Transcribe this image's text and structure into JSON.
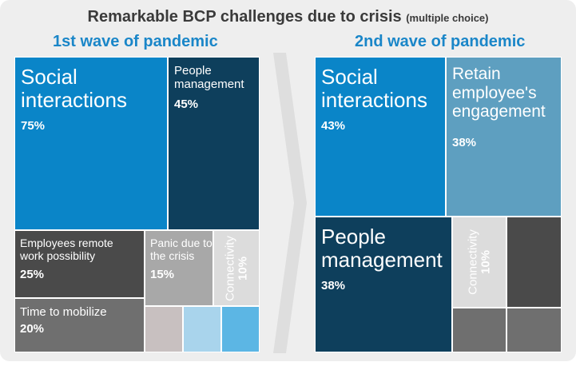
{
  "title": "Remarkable BCP challenges due to crisis",
  "subtitle": "(multiple choice)",
  "colors": {
    "dark_blue": "#0e3f5c",
    "mid_blue": "#0a85c8",
    "steel_blue": "#5e9fc0",
    "dark_gray": "#4a4a4a",
    "gray": "#6f6f6f",
    "light_gray": "#a8a8a8",
    "pale_gray": "#dcdcdc",
    "taupe": "#c8c0c0",
    "light_blue": "#a9d4ec",
    "sky_blue": "#5cb6e4",
    "arrow": "#dedede"
  },
  "chart_data": [
    {
      "type": "treemap",
      "title": "1st wave of pandemic",
      "items": [
        {
          "name": "Social interactions",
          "value": 75,
          "value_label": "75%"
        },
        {
          "name": "People management",
          "value": 45,
          "value_label": "45%"
        },
        {
          "name": "Employees remote work possibility",
          "value": 25,
          "value_label": "25%"
        },
        {
          "name": "Panic due to the crisis",
          "value": 15,
          "value_label": "15%"
        },
        {
          "name": "Connectivity",
          "value": 10,
          "value_label": "10%"
        },
        {
          "name": "Time to mobilize",
          "value": 20,
          "value_label": "20%"
        }
      ]
    },
    {
      "type": "treemap",
      "title": "2nd wave of pandemic",
      "items": [
        {
          "name": "Social interactions",
          "value": 43,
          "value_label": "43%"
        },
        {
          "name": "Retain employee's engagement",
          "value": 38,
          "value_label": "38%"
        },
        {
          "name": "People management",
          "value": 38,
          "value_label": "38%"
        },
        {
          "name": "Connectivity",
          "value": 10,
          "value_label": "10%"
        }
      ]
    }
  ]
}
